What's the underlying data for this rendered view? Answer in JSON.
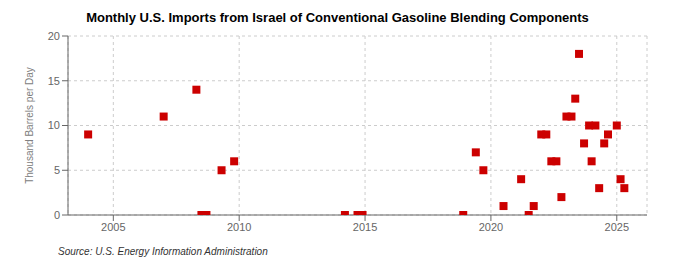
{
  "chart_data": {
    "type": "scatter",
    "title": "Monthly U.S. Imports from Israel of Conventional Gasoline Blending Components",
    "y_label": "Thousand Barrels per Day",
    "annotations": [
      "Source: U.S. Energy Information Administration"
    ],
    "x": [
      2004.0,
      2007.0,
      2008.3,
      2008.5,
      2008.7,
      2009.3,
      2009.8,
      2014.2,
      2014.7,
      2014.9,
      2018.9,
      2019.4,
      2019.7,
      2020.5,
      2021.2,
      2021.5,
      2021.7,
      2022.0,
      2022.2,
      2022.4,
      2022.6,
      2022.8,
      2023.0,
      2023.2,
      2023.35,
      2023.5,
      2023.7,
      2023.9,
      2024.0,
      2024.15,
      2024.3,
      2024.5,
      2024.65,
      2025.0,
      2025.15,
      2025.3
    ],
    "values": [
      9,
      11,
      14,
      0,
      0,
      5,
      6,
      0,
      0,
      0,
      0,
      7,
      5,
      1,
      4,
      0,
      1,
      9,
      9,
      6,
      6,
      2,
      11,
      11,
      13,
      18,
      8,
      10,
      6,
      10,
      3,
      8,
      9,
      10,
      4,
      3
    ],
    "xlim": [
      2003.2,
      2026.2
    ],
    "ylim": [
      0,
      20
    ],
    "xticks": [
      2005,
      2010,
      2015,
      2020,
      2025
    ],
    "yticks": [
      0,
      5,
      10,
      15,
      20
    ],
    "grid": true,
    "color": "#cc0000",
    "marker": "square"
  }
}
